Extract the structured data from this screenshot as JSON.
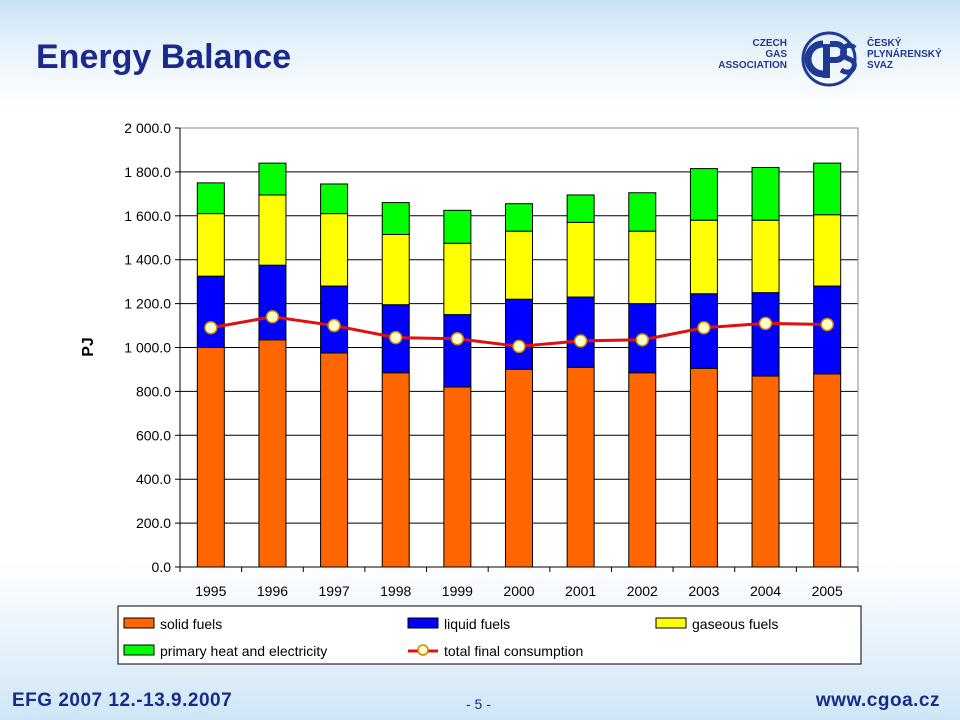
{
  "slide": {
    "title": "Energy Balance",
    "footer_left": "EFG 2007   12.-13.9.2007",
    "footer_center": "- 5 -",
    "footer_right": "www.cgoa.cz"
  },
  "logo": {
    "left_line1": "CZECH",
    "left_line2": "GAS",
    "left_line3": "ASSOCIATION",
    "right_line1": "ČESKÝ",
    "right_line2": "PLYNÁRENSKÝ",
    "right_line3": "SVAZ",
    "color": "#1f3a93"
  },
  "chart_data": {
    "type": "bar",
    "stacked": true,
    "categories": [
      "1995",
      "1996",
      "1997",
      "1998",
      "1999",
      "2000",
      "2001",
      "2002",
      "2003",
      "2004",
      "2005"
    ],
    "ylabel": "PJ",
    "xlabel": "",
    "ylim": [
      0,
      2000
    ],
    "yticks": [
      0,
      200,
      400,
      600,
      800,
      1000,
      1200,
      1400,
      1600,
      1800,
      2000
    ],
    "ytick_labels": [
      "0.0",
      "200.0",
      "400.0",
      "600.0",
      "800.0",
      "1 000.0",
      "1 200.0",
      "1 400.0",
      "1 600.0",
      "1 800.0",
      "2 000.0"
    ],
    "grid": true,
    "legend_position": "bottom",
    "series": [
      {
        "name": "solid fuels",
        "color": "#ff6600",
        "values": [
          1000,
          1035,
          975,
          885,
          820,
          900,
          910,
          885,
          905,
          870,
          880
        ]
      },
      {
        "name": "liquid fuels",
        "color": "#0000ff",
        "values": [
          325,
          340,
          305,
          310,
          330,
          320,
          320,
          315,
          340,
          380,
          400
        ]
      },
      {
        "name": "gaseous fuels",
        "color": "#ffff00",
        "values": [
          285,
          320,
          330,
          320,
          325,
          310,
          340,
          330,
          335,
          330,
          325
        ]
      },
      {
        "name": "primary heat and electricity",
        "color": "#00ff00",
        "values": [
          140,
          145,
          135,
          145,
          150,
          125,
          125,
          175,
          235,
          240,
          235
        ]
      }
    ],
    "line_series": {
      "name": "total final consumption",
      "color": "#e01010",
      "marker_fill": "#ffffcc",
      "marker_stroke": "#cc8800",
      "values": [
        1090,
        1140,
        1100,
        1045,
        1040,
        1005,
        1030,
        1035,
        1090,
        1110,
        1105
      ]
    }
  }
}
